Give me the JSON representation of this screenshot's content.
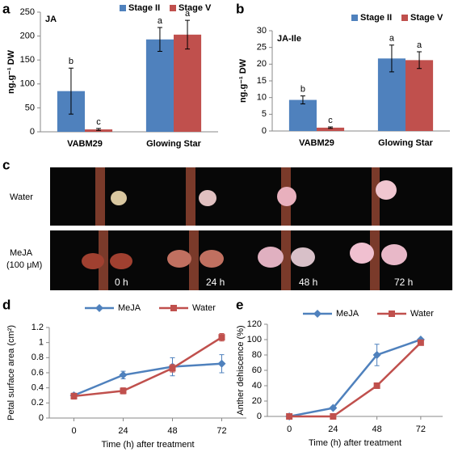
{
  "panels": [
    "a",
    "b",
    "c",
    "d",
    "e"
  ],
  "photo": {
    "rows": [
      "Water",
      "MeJA",
      "(100 μM)"
    ],
    "times": [
      "0 h",
      "24 h",
      "48 h",
      "72 h"
    ]
  },
  "chart_data": [
    {
      "type": "bar",
      "title": "JA",
      "y_label": "ng.g⁻¹ DW",
      "categories": [
        "VABM29",
        "Glowing Star"
      ],
      "series": [
        {
          "name": "Stage II",
          "color": "#4f81bd",
          "values": [
            85,
            193
          ],
          "errors": [
            48,
            25
          ],
          "letters": [
            "b",
            "a"
          ]
        },
        {
          "name": "Stage V",
          "color": "#c0504d",
          "values": [
            5,
            203
          ],
          "errors": [
            2,
            30
          ],
          "letters": [
            "c",
            "a"
          ]
        }
      ],
      "ylim": [
        0,
        250
      ],
      "yticks": [
        0,
        50,
        100,
        150,
        200,
        250
      ]
    },
    {
      "type": "bar",
      "title": "JA-Ile",
      "y_label": "ng.g⁻¹ DW",
      "categories": [
        "VABM29",
        "Glowing Star"
      ],
      "series": [
        {
          "name": "Stage II",
          "color": "#4f81bd",
          "values": [
            9.3,
            21.7
          ],
          "errors": [
            1.2,
            4
          ],
          "letters": [
            "b",
            "a"
          ]
        },
        {
          "name": "Stage V",
          "color": "#c0504d",
          "values": [
            1,
            21.2
          ],
          "errors": [
            0.2,
            2.5
          ],
          "letters": [
            "c",
            "a"
          ]
        }
      ],
      "ylim": [
        0,
        30
      ],
      "yticks": [
        0,
        5,
        10,
        15,
        20,
        25,
        30
      ]
    },
    {
      "type": "line",
      "x_label": "Time (h) after treatment",
      "y_label": "Petal surface area (cm²)",
      "x": [
        0,
        24,
        48,
        72
      ],
      "series": [
        {
          "name": "MeJA",
          "color": "#4f81bd",
          "marker": "diamond",
          "values": [
            0.3,
            0.57,
            0.68,
            0.72
          ],
          "errors": [
            0.03,
            0.05,
            0.12,
            0.12
          ]
        },
        {
          "name": "Water",
          "color": "#c0504d",
          "marker": "square",
          "values": [
            0.29,
            0.36,
            0.66,
            1.07
          ],
          "errors": [
            0.04,
            0.04,
            0.05,
            0.05
          ]
        }
      ],
      "xlim": [
        -12,
        84
      ],
      "xticks": [
        0,
        24,
        48,
        72
      ],
      "ylim": [
        0,
        1.2
      ],
      "yticks": [
        0,
        0.2,
        0.4,
        0.6,
        0.8,
        1,
        1.2
      ]
    },
    {
      "type": "line",
      "x_label": "Time (h) after treatment",
      "y_label": "Anther dehiscence (%)",
      "x": [
        0,
        24,
        48,
        72
      ],
      "series": [
        {
          "name": "MeJA",
          "color": "#4f81bd",
          "marker": "diamond",
          "values": [
            0,
            11,
            80,
            100
          ],
          "errors": [
            0,
            0,
            14,
            0
          ]
        },
        {
          "name": "Water",
          "color": "#c0504d",
          "marker": "square",
          "values": [
            0,
            0,
            40,
            96
          ],
          "errors": [
            0,
            0,
            0,
            0
          ]
        }
      ],
      "xlim": [
        -12,
        84
      ],
      "xticks": [
        0,
        24,
        48,
        72
      ],
      "ylim": [
        0,
        120
      ],
      "yticks": [
        0,
        20,
        40,
        60,
        80,
        100,
        120
      ]
    }
  ]
}
